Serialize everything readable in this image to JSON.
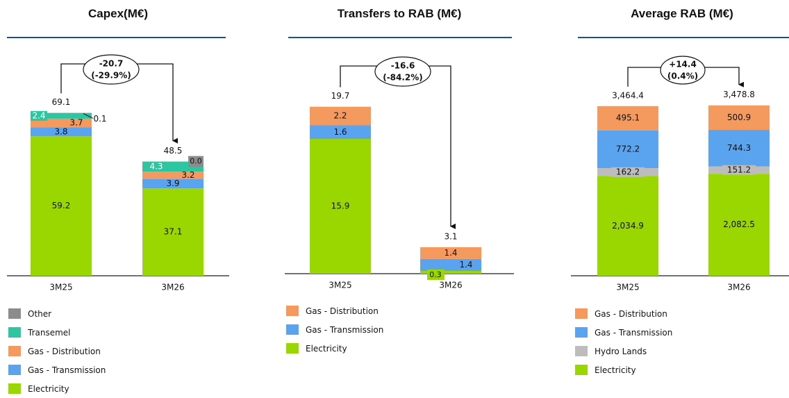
{
  "colors": {
    "Electricity": "#9ad600",
    "Gas - Transmission": "#5aa3ef",
    "Gas - Distribution": "#f59a5f",
    "Transemel": "#2cc7a0",
    "Other": "#8c8c8c",
    "Hydro Lands": "#bdbdbd",
    "rule": "#1f4e8c"
  },
  "chart_data": [
    {
      "type": "bar",
      "title": "Capex(M€)",
      "categories": [
        "3M25",
        "3M26"
      ],
      "totals": [
        "69.1",
        "48.5"
      ],
      "series": [
        {
          "name": "Electricity",
          "values": [
            59.2,
            37.1
          ],
          "labels": [
            "59.2",
            "37.1"
          ]
        },
        {
          "name": "Gas - Transmission",
          "values": [
            3.8,
            3.9
          ],
          "labels": [
            "3.8",
            "3.9"
          ]
        },
        {
          "name": "Gas - Distribution",
          "values": [
            3.7,
            3.2
          ],
          "labels": [
            "3.7",
            "3.2"
          ]
        },
        {
          "name": "Transemel",
          "values": [
            2.4,
            4.3
          ],
          "labels": [
            "2.4",
            "4.3"
          ]
        },
        {
          "name": "Other",
          "values": [
            0.1,
            0.0
          ],
          "labels": [
            "0.1",
            "0.0"
          ]
        }
      ],
      "change": {
        "line1": "-20.7",
        "line2": "(-29.9%)"
      },
      "legend": [
        "Other",
        "Transemel",
        "Gas - Distribution",
        "Gas - Transmission",
        "Electricity"
      ]
    },
    {
      "type": "bar",
      "title": "Transfers to RAB (M€)",
      "categories": [
        "3M25",
        "3M26"
      ],
      "totals": [
        "19.7",
        "3.1"
      ],
      "series": [
        {
          "name": "Electricity",
          "values": [
            15.9,
            0.3
          ],
          "labels": [
            "15.9",
            "0.3"
          ]
        },
        {
          "name": "Gas - Transmission",
          "values": [
            1.6,
            1.4
          ],
          "labels": [
            "1.6",
            "1.4"
          ]
        },
        {
          "name": "Gas - Distribution",
          "values": [
            2.2,
            1.4
          ],
          "labels": [
            "2.2",
            "1.4"
          ]
        }
      ],
      "change": {
        "line1": "-16.6",
        "line2": "(-84.2%)"
      },
      "legend": [
        "Gas - Distribution",
        "Gas - Transmission",
        "Electricity"
      ]
    },
    {
      "type": "bar",
      "title": "Average RAB (M€)",
      "categories": [
        "3M25",
        "3M26"
      ],
      "totals": [
        "3,464.4",
        "3,478.8"
      ],
      "series": [
        {
          "name": "Electricity",
          "values": [
            2034.9,
            2082.5
          ],
          "labels": [
            "2,034.9",
            "2,082.5"
          ]
        },
        {
          "name": "Hydro Lands",
          "values": [
            162.2,
            151.2
          ],
          "labels": [
            "162.2",
            "151.2"
          ]
        },
        {
          "name": "Gas - Transmission",
          "values": [
            772.2,
            744.3
          ],
          "labels": [
            "772.2",
            "744.3"
          ]
        },
        {
          "name": "Gas - Distribution",
          "values": [
            495.1,
            500.9
          ],
          "labels": [
            "495.1",
            "500.9"
          ]
        }
      ],
      "change": {
        "line1": "+14.4",
        "line2": "(0.4%)"
      },
      "legend": [
        "Gas - Distribution",
        "Gas - Transmission",
        "Hydro Lands",
        "Electricity"
      ]
    }
  ]
}
